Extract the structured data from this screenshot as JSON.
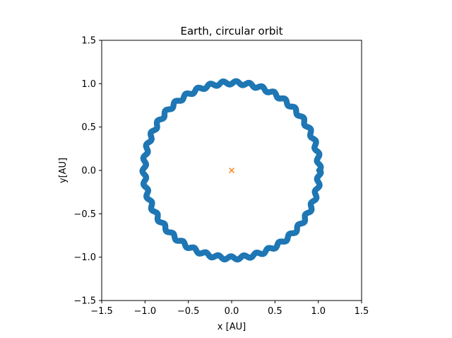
{
  "chart_data": {
    "type": "scatter",
    "title": "Earth, circular orbit",
    "xlabel": "x [AU]",
    "ylabel": "y[AU]",
    "xlim": [
      -1.5,
      1.5
    ],
    "ylim": [
      -1.5,
      1.5
    ],
    "xticks": [
      -1.5,
      -1.0,
      -0.5,
      0.0,
      0.5,
      1.0,
      1.5
    ],
    "yticks": [
      -1.5,
      -1.0,
      -0.5,
      0.0,
      0.5,
      1.0,
      1.5
    ],
    "xtick_labels": [
      "−1.5",
      "−1.0",
      "−0.5",
      "0.0",
      "0.5",
      "1.0",
      "1.5"
    ],
    "ytick_labels": [
      "−1.5",
      "−1.0",
      "−0.5",
      "0.0",
      "0.5",
      "1.0",
      "1.5"
    ],
    "grid": false,
    "series": [
      {
        "marker": "o",
        "color": "#1f77b4",
        "orbit": {
          "center": [
            0.0,
            0.0
          ],
          "radius_min": 0.99,
          "radius_max": 1.03
        }
      },
      {
        "marker": "x",
        "color": "#ff7f0e",
        "points": [
          [
            0.0,
            0.0
          ]
        ]
      }
    ]
  }
}
